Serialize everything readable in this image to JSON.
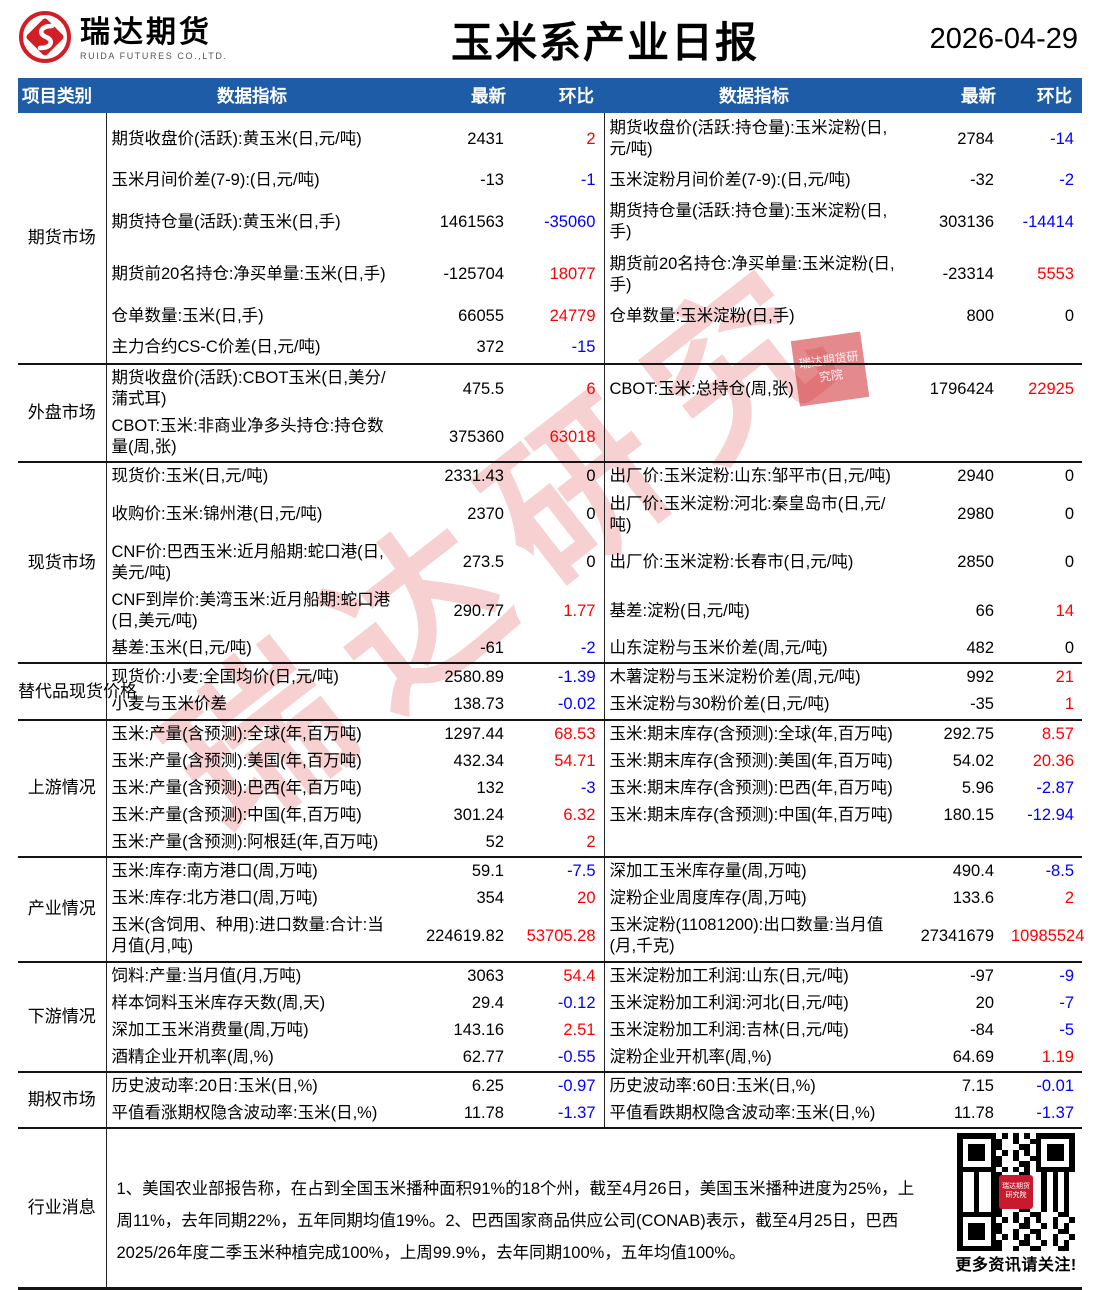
{
  "header": {
    "logo_title": "瑞达期货",
    "logo_subtitle": "RUIDA FUTURES CO.,LTD.",
    "title": "玉米系产业日报",
    "date": "2026-04-29"
  },
  "colors": {
    "header_bar": "#1e5ca8",
    "positive_change": "#ff0000",
    "negative_change": "#0000ff",
    "brand_red": "#d21f26"
  },
  "table": {
    "columns": [
      "项目类别",
      "数据指标",
      "最新",
      "环比",
      "数据指标",
      "最新",
      "环比"
    ],
    "sections": [
      {
        "category": "期货市场",
        "rows": [
          {
            "l": "期货收盘价(活跃):黄玉米(日,元/吨)",
            "lv": "2431",
            "lc": "2",
            "r": "期货收盘价(活跃:持仓量):玉米淀粉(日,元/吨)",
            "rv": "2784",
            "rc": "-14"
          },
          {
            "l": "玉米月间价差(7-9):(日,元/吨)",
            "lv": "-13",
            "lc": "-1",
            "r": "玉米淀粉月间价差(7-9):(日,元/吨)",
            "rv": "-32",
            "rc": "-2"
          },
          {
            "l": "期货持仓量(活跃):黄玉米(日,手)",
            "lv": "1461563",
            "lc": "-35060",
            "r": "期货持仓量(活跃:持仓量):玉米淀粉(日,手)",
            "rv": "303136",
            "rc": "-14414"
          },
          {
            "l": "期货前20名持仓:净买单量:玉米(日,手)",
            "lv": "-125704",
            "lc": "18077",
            "r": "期货前20名持仓:净买单量:玉米淀粉(日,手)",
            "rv": "-23314",
            "rc": "5553"
          },
          {
            "l": "仓单数量:玉米(日,手)",
            "lv": "66055",
            "lc": "24779",
            "r": "仓单数量:玉米淀粉(日,手)",
            "rv": "800",
            "rc": "0"
          },
          {
            "l": "主力合约CS-C价差(日,元/吨)",
            "lv": "372",
            "lc": "-15",
            "r": "",
            "rv": "",
            "rc": ""
          }
        ]
      },
      {
        "category": "外盘市场",
        "rows": [
          {
            "l": "期货收盘价(活跃):CBOT玉米(日,美分/蒲式耳)",
            "lv": "475.5",
            "lc": "6",
            "r": "CBOT:玉米:总持仓(周,张)",
            "rv": "1796424",
            "rc": "22925"
          },
          {
            "l": "CBOT:玉米:非商业净多头持仓:持仓数量(周,张)",
            "lv": "375360",
            "lc": "63018",
            "r": "",
            "rv": "",
            "rc": ""
          }
        ]
      },
      {
        "category": "现货市场",
        "rows": [
          {
            "l": "现货价:玉米(日,元/吨)",
            "lv": "2331.43",
            "lc": "0",
            "r": "出厂价:玉米淀粉:山东:邹平市(日,元/吨)",
            "rv": "2940",
            "rc": "0"
          },
          {
            "l": "收购价:玉米:锦州港(日,元/吨)",
            "lv": "2370",
            "lc": "0",
            "r": "出厂价:玉米淀粉:河北:秦皇岛市(日,元/吨)",
            "rv": "2980",
            "rc": "0"
          },
          {
            "l": "CNF价:巴西玉米:近月船期:蛇口港(日,美元/吨)",
            "lv": "273.5",
            "lc": "0",
            "r": "出厂价:玉米淀粉:长春市(日,元/吨)",
            "rv": "2850",
            "rc": "0"
          },
          {
            "l": "CNF到岸价:美湾玉米:近月船期:蛇口港(日,美元/吨)",
            "lv": "290.77",
            "lc": "1.77",
            "r": "基差:淀粉(日,元/吨)",
            "rv": "66",
            "rc": "14"
          },
          {
            "l": "基差:玉米(日,元/吨)",
            "lv": "-61",
            "lc": "-2",
            "r": "山东淀粉与玉米价差(周,元/吨)",
            "rv": "482",
            "rc": "0"
          }
        ]
      },
      {
        "category": "替代品现货价格",
        "rows": [
          {
            "l": "现货价:小麦:全国均价(日,元/吨)",
            "lv": "2580.89",
            "lc": "-1.39",
            "r": "木薯淀粉与玉米淀粉价差(周,元/吨)",
            "rv": "992",
            "rc": "21"
          },
          {
            "l": "小麦与玉米价差",
            "lv": "138.73",
            "lc": "-0.02",
            "r": "玉米淀粉与30粉价差(日,元/吨)",
            "rv": "-35",
            "rc": "1"
          }
        ]
      },
      {
        "category": "上游情况",
        "rows": [
          {
            "l": "玉米:产量(含预测):全球(年,百万吨)",
            "lv": "1297.44",
            "lc": "68.53",
            "r": "玉米:期末库存(含预测):全球(年,百万吨)",
            "rv": "292.75",
            "rc": "8.57"
          },
          {
            "l": "玉米:产量(含预测):美国(年,百万吨)",
            "lv": "432.34",
            "lc": "54.71",
            "r": "玉米:期末库存(含预测):美国(年,百万吨)",
            "rv": "54.02",
            "rc": "20.36"
          },
          {
            "l": "玉米:产量(含预测):巴西(年,百万吨)",
            "lv": "132",
            "lc": "-3",
            "r": "玉米:期末库存(含预测):巴西(年,百万吨)",
            "rv": "5.96",
            "rc": "-2.87"
          },
          {
            "l": "玉米:产量(含预测):中国(年,百万吨)",
            "lv": "301.24",
            "lc": "6.32",
            "r": "玉米:期末库存(含预测):中国(年,百万吨)",
            "rv": "180.15",
            "rc": "-12.94"
          },
          {
            "l": "玉米:产量(含预测):阿根廷(年,百万吨)",
            "lv": "52",
            "lc": "2",
            "r": "",
            "rv": "",
            "rc": ""
          }
        ]
      },
      {
        "category": "产业情况",
        "rows": [
          {
            "l": "玉米:库存:南方港口(周,万吨)",
            "lv": "59.1",
            "lc": "-7.5",
            "r": "深加工玉米库存量(周,万吨)",
            "rv": "490.4",
            "rc": "-8.5"
          },
          {
            "l": "玉米:库存:北方港口(周,万吨)",
            "lv": "354",
            "lc": "20",
            "r": "淀粉企业周度库存(周,万吨)",
            "rv": "133.6",
            "rc": "2"
          },
          {
            "l": "玉米(含饲用、种用):进口数量:合计:当月值(月,吨)",
            "lv": "224619.82",
            "lc": "53705.28",
            "r": "玉米淀粉(11081200):出口数量:当月值(月,千克)",
            "rv": "27341679",
            "rc": "10985524"
          }
        ]
      },
      {
        "category": "下游情况",
        "rows": [
          {
            "l": "饲料:产量:当月值(月,万吨)",
            "lv": "3063",
            "lc": "54.4",
            "r": "玉米淀粉加工利润:山东(日,元/吨)",
            "rv": "-97",
            "rc": "-9"
          },
          {
            "l": "样本饲料玉米库存天数(周,天)",
            "lv": "29.4",
            "lc": "-0.12",
            "r": "玉米淀粉加工利润:河北(日,元/吨)",
            "rv": "20",
            "rc": "-7"
          },
          {
            "l": "深加工玉米消费量(周,万吨)",
            "lv": "143.16",
            "lc": "2.51",
            "r": "玉米淀粉加工利润:吉林(日,元/吨)",
            "rv": "-84",
            "rc": "-5"
          },
          {
            "l": "酒精企业开机率(周,%)",
            "lv": "62.77",
            "lc": "-0.55",
            "r": "淀粉企业开机率(周,%)",
            "rv": "64.69",
            "rc": "1.19"
          }
        ]
      },
      {
        "category": "期权市场",
        "rows": [
          {
            "l": "历史波动率:20日:玉米(日,%)",
            "lv": "6.25",
            "lc": "-0.97",
            "r": "历史波动率:60日:玉米(日,%)",
            "rv": "7.15",
            "rc": "-0.01"
          },
          {
            "l": "平值看涨期权隐含波动率:玉米(日,%)",
            "lv": "11.78",
            "lc": "-1.37",
            "r": "平值看跌期权隐含波动率:玉米(日,%)",
            "rv": "11.78",
            "rc": "-1.37"
          }
        ]
      }
    ]
  },
  "news": {
    "category": "行业消息",
    "text": "1、美国农业部报告称，在占到全国玉米播种面积91%的18个州，截至4月26日，美国玉米播种进度为25%，上周11%，去年同期22%，五年同期均值19%。2、巴西国家商品供应公司(CONAB)表示，截至4月25日，巴西2025/26年度二季玉米种植完成100%，上周99.9%，去年同期100%，五年均值100%。"
  },
  "footer": {
    "qr_caption": "更多资讯请关注!",
    "qr_center_label": "瑞达期货研究院"
  },
  "watermark": {
    "text": "瑞达研究",
    "seal_text": "瑞达期货研究院"
  }
}
